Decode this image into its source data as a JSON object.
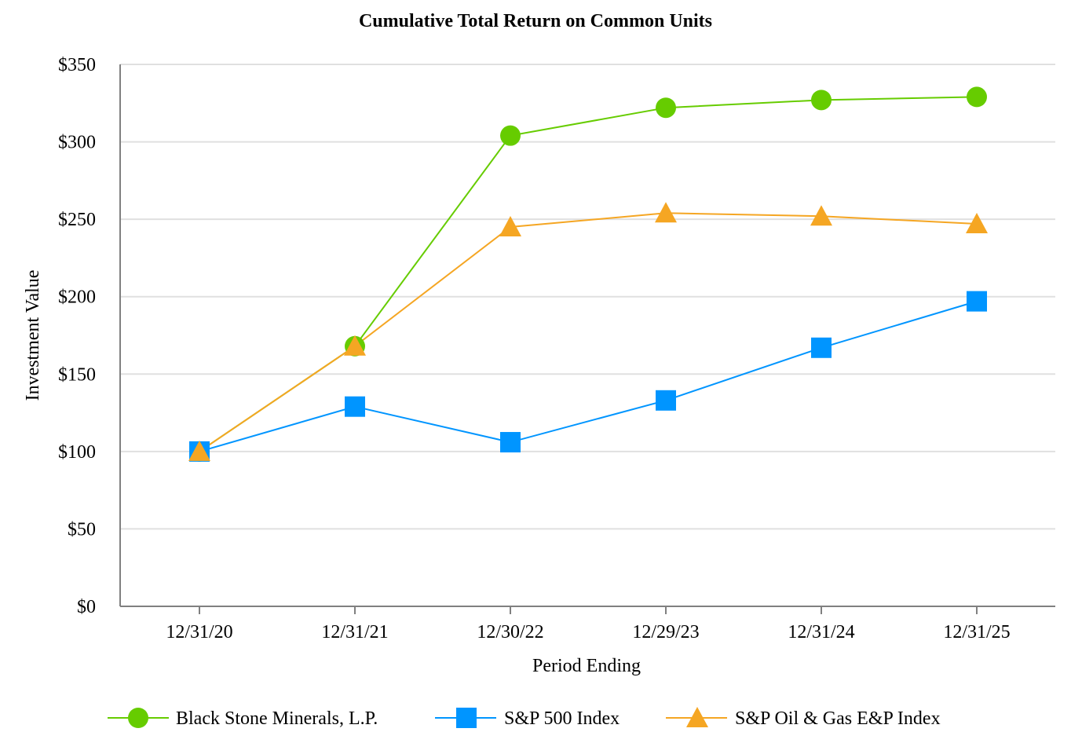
{
  "chart_data": {
    "type": "line",
    "title": "Cumulative Total Return on Common Units",
    "xlabel": "Period Ending",
    "ylabel": "Investment Value",
    "categories": [
      "12/31/20",
      "12/31/21",
      "12/30/22",
      "12/29/23",
      "12/31/24",
      "12/31/25"
    ],
    "ylim": [
      0,
      350
    ],
    "yticks": [
      0,
      50,
      100,
      150,
      200,
      250,
      300,
      350
    ],
    "ytick_labels": [
      "$0",
      "$50",
      "$100",
      "$150",
      "$200",
      "$250",
      "$300",
      "$350"
    ],
    "grid": "horizontal",
    "legend_position": "bottom",
    "series": [
      {
        "name": "Black Stone Minerals, L.P.",
        "color": "#66cc00",
        "marker": "circle",
        "values": [
          100,
          168,
          304,
          322,
          327,
          329
        ]
      },
      {
        "name": "S&P 500 Index",
        "color": "#0095ff",
        "marker": "square",
        "values": [
          100,
          129,
          106,
          133,
          167,
          197
        ]
      },
      {
        "name": "S&P Oil & Gas E&P Index",
        "color": "#f5a623",
        "marker": "triangle",
        "values": [
          100,
          168,
          245,
          254,
          252,
          247
        ]
      }
    ]
  }
}
